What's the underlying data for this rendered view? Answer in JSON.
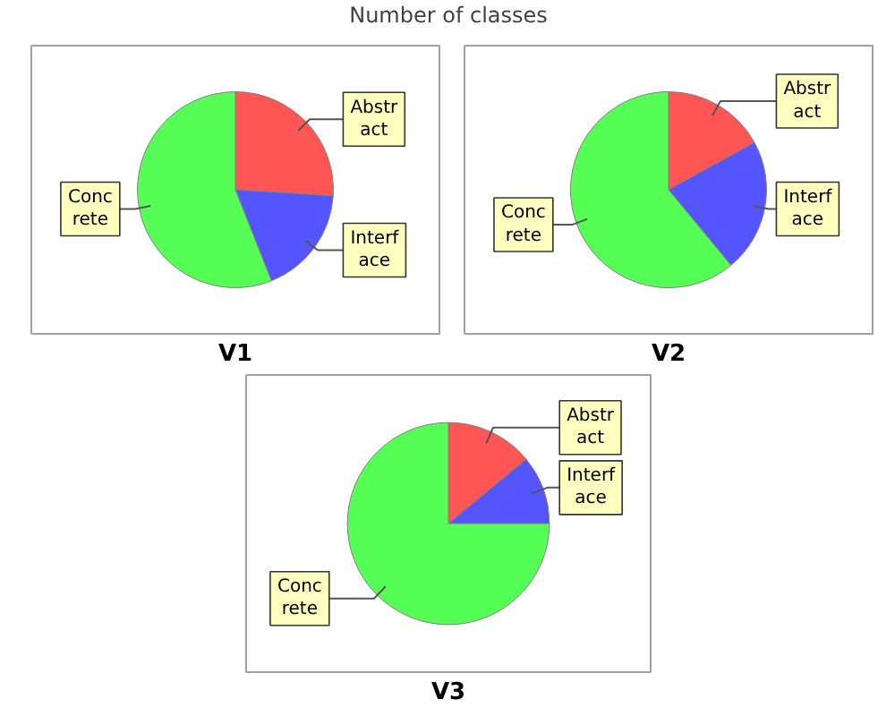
{
  "chart_data": [
    {
      "type": "other",
      "title": "Number of classes"
    },
    {
      "type": "pie",
      "title": "V1",
      "categories": [
        "Abstract",
        "Interface",
        "Concrete"
      ],
      "values": [
        26,
        18,
        56
      ],
      "colors": [
        "#ff5555",
        "#5555ff",
        "#55ff55"
      ]
    },
    {
      "type": "pie",
      "title": "V2",
      "categories": [
        "Abstract",
        "Interface",
        "Concrete"
      ],
      "values": [
        17,
        22,
        61
      ],
      "colors": [
        "#ff5555",
        "#5555ff",
        "#55ff55"
      ]
    },
    {
      "type": "pie",
      "title": "V3",
      "categories": [
        "Abstract",
        "Interface",
        "Concrete"
      ],
      "values": [
        14,
        11,
        75
      ],
      "colors": [
        "#ff5555",
        "#5555ff",
        "#55ff55"
      ]
    }
  ]
}
